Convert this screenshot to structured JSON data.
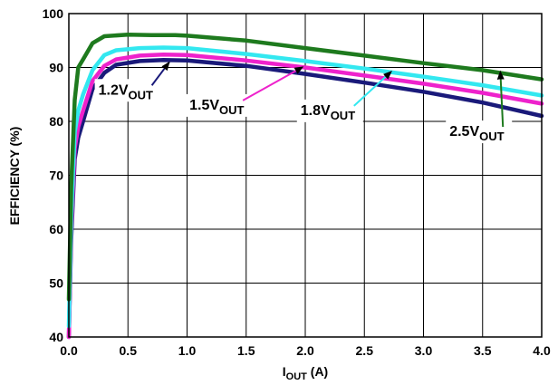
{
  "chart_data": {
    "type": "line",
    "title": "",
    "xlabel": {
      "main": "I",
      "sub": "OUT",
      "rest": " (A)"
    },
    "ylabel": "EFFICIENCY (%)",
    "xlim": [
      0,
      4
    ],
    "ylim": [
      40,
      100
    ],
    "grid": true,
    "x_ticks": [
      "0.0",
      "0.5",
      "1.0",
      "1.5",
      "2.0",
      "2.5",
      "3.0",
      "3.5",
      "4.0"
    ],
    "y_ticks": [
      "40",
      "50",
      "60",
      "70",
      "80",
      "90",
      "100"
    ],
    "series": [
      {
        "color": "#1a1a7a",
        "points": [
          [
            0.0,
            40
          ],
          [
            0.02,
            58
          ],
          [
            0.05,
            73
          ],
          [
            0.08,
            77
          ],
          [
            0.12,
            80
          ],
          [
            0.2,
            86
          ],
          [
            0.3,
            89
          ],
          [
            0.4,
            90.5
          ],
          [
            0.6,
            91.2
          ],
          [
            0.8,
            91.4
          ],
          [
            1.0,
            91.3
          ],
          [
            1.5,
            90.3
          ],
          [
            2.0,
            88.8
          ],
          [
            2.5,
            87.2
          ],
          [
            3.0,
            85.5
          ],
          [
            3.5,
            83.5
          ],
          [
            4.0,
            81.0
          ]
        ]
      },
      {
        "color": "#ee22cc",
        "points": [
          [
            0.0,
            40
          ],
          [
            0.02,
            60
          ],
          [
            0.05,
            75
          ],
          [
            0.08,
            79
          ],
          [
            0.12,
            82
          ],
          [
            0.2,
            87.5
          ],
          [
            0.3,
            90.3
          ],
          [
            0.4,
            91.5
          ],
          [
            0.6,
            92.2
          ],
          [
            0.8,
            92.4
          ],
          [
            1.0,
            92.3
          ],
          [
            1.5,
            91.3
          ],
          [
            2.0,
            90.0
          ],
          [
            2.5,
            88.5
          ],
          [
            3.0,
            87.0
          ],
          [
            3.5,
            85.3
          ],
          [
            4.0,
            83.3
          ]
        ]
      },
      {
        "color": "#33e8f0",
        "points": [
          [
            0.0,
            42
          ],
          [
            0.02,
            62
          ],
          [
            0.05,
            78
          ],
          [
            0.08,
            82
          ],
          [
            0.12,
            85
          ],
          [
            0.2,
            89.5
          ],
          [
            0.3,
            92.3
          ],
          [
            0.4,
            93.2
          ],
          [
            0.6,
            93.6
          ],
          [
            0.8,
            93.7
          ],
          [
            1.0,
            93.6
          ],
          [
            1.5,
            92.5
          ],
          [
            2.0,
            91.2
          ],
          [
            2.5,
            89.8
          ],
          [
            3.0,
            88.3
          ],
          [
            3.5,
            86.7
          ],
          [
            4.0,
            84.8
          ]
        ]
      },
      {
        "color": "#1e7a1e",
        "points": [
          [
            0.0,
            47
          ],
          [
            0.02,
            68
          ],
          [
            0.05,
            84
          ],
          [
            0.08,
            90
          ],
          [
            0.12,
            91.5
          ],
          [
            0.2,
            94.5
          ],
          [
            0.3,
            95.8
          ],
          [
            0.5,
            96.1
          ],
          [
            0.7,
            96.0
          ],
          [
            0.9,
            96.0
          ],
          [
            1.0,
            95.9
          ],
          [
            1.5,
            95.0
          ],
          [
            2.0,
            93.6
          ],
          [
            2.5,
            92.2
          ],
          [
            3.0,
            90.8
          ],
          [
            3.5,
            89.5
          ],
          [
            4.0,
            87.8
          ]
        ]
      }
    ],
    "annotations": [
      {
        "label": "1.2V",
        "sub": "OUT",
        "text_at": [
          0.25,
          85.0
        ],
        "arrow_to": [
          0.85,
          91.0
        ]
      },
      {
        "label": "1.5V",
        "sub": "OUT",
        "text_at": [
          1.02,
          82.2
        ],
        "arrow_to": [
          1.98,
          90.1
        ]
      },
      {
        "label": "1.8V",
        "sub": "OUT",
        "text_at": [
          1.96,
          81.2
        ],
        "arrow_to": [
          2.73,
          89.3
        ]
      },
      {
        "label": "2.5V",
        "sub": "OUT",
        "text_at": [
          3.22,
          77.3
        ],
        "arrow_to": [
          3.65,
          89.3
        ]
      }
    ]
  }
}
